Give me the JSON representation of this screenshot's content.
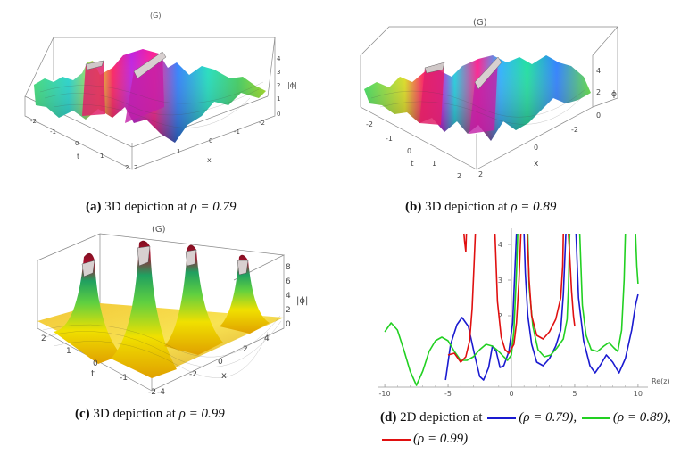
{
  "panel_a": {
    "title": "(G)",
    "zlabel": "|ϕ|",
    "xlabel": "x",
    "tlabel": "t",
    "z_ticks": [
      "4",
      "3",
      "2",
      "1",
      "0"
    ],
    "t_ticks": [
      "-2",
      "-1",
      "0",
      "1",
      "2"
    ],
    "x_ticks": [
      "2",
      "1",
      "0",
      "-1",
      "-2"
    ],
    "caption_label": "(a)",
    "caption_text": " 3D depiction at ",
    "caption_rho": "ρ = 0.79"
  },
  "panel_b": {
    "title": "(G)",
    "zlabel": "|ϕ|",
    "xlabel": "x",
    "tlabel": "t",
    "z_ticks": [
      "4",
      "2",
      "0"
    ],
    "t_ticks": [
      "-2",
      "-1",
      "0",
      "1",
      "2"
    ],
    "x_ticks": [
      "2",
      "0",
      "-2"
    ],
    "caption_label": "(b)",
    "caption_text": " 3D depiction at ",
    "caption_rho": "ρ = 0.89"
  },
  "panel_c": {
    "title": "(G)",
    "zlabel": "|ϕ|",
    "xlabel": "x",
    "tlabel": "t",
    "z_ticks": [
      "8",
      "6",
      "4",
      "2",
      "0"
    ],
    "t_ticks": [
      "2",
      "1",
      "0",
      "-1",
      "-2"
    ],
    "x_ticks": [
      "4",
      "2",
      "0",
      "-2",
      "-4"
    ],
    "caption_label": "(c)",
    "caption_text": " 3D depiction at ",
    "caption_rho": "ρ = 0.99"
  },
  "panel_d": {
    "caption_label": "(d)",
    "caption_text": " 2D depiction at ",
    "legend": [
      {
        "rho": "(ρ = 0.79),",
        "color": "#1a1ad0"
      },
      {
        "rho": "(ρ = 0.89),",
        "color": "#22d022"
      },
      {
        "rho": "(ρ = 0.99)",
        "color": "#e01010"
      }
    ]
  },
  "chart_data": {
    "type": "line",
    "title": "",
    "xlabel": "Re(z)",
    "ylabel": "",
    "xlim": [
      -10.5,
      10.5
    ],
    "ylim": [
      0,
      4.3
    ],
    "x_ticks": [
      -10,
      -5,
      0,
      5,
      10
    ],
    "x_tick_labels": [
      "-10",
      "-5",
      "0",
      "5",
      "10"
    ],
    "y_ticks": [
      2,
      3,
      4
    ],
    "y_tick_labels": [
      "2",
      "3",
      "4"
    ],
    "series": [
      {
        "name": "ρ = 0.79",
        "color": "#1a1ad0",
        "points": [
          [
            -5.2,
            0.2
          ],
          [
            -4.8,
            1.2
          ],
          [
            -4.3,
            1.75
          ],
          [
            -3.9,
            1.95
          ],
          [
            -3.4,
            1.7
          ],
          [
            -2.9,
            0.9
          ],
          [
            -2.5,
            0.3
          ],
          [
            -2.2,
            0.2
          ],
          [
            -1.8,
            0.55
          ],
          [
            -1.5,
            1.15
          ],
          [
            -1.2,
            1.0
          ],
          [
            -0.9,
            0.55
          ],
          [
            -0.6,
            0.6
          ],
          [
            -0.2,
            1.0
          ],
          [
            0.1,
            1.8
          ],
          [
            0.3,
            3.5
          ],
          [
            0.4,
            4.3
          ]
        ]
      },
      {
        "name": "ρ = 0.79",
        "color": "#1a1ad0",
        "points": [
          [
            1.0,
            4.3
          ],
          [
            1.1,
            3.2
          ],
          [
            1.3,
            2.0
          ],
          [
            1.6,
            1.2
          ],
          [
            2.0,
            0.7
          ],
          [
            2.5,
            0.6
          ],
          [
            3.0,
            0.8
          ],
          [
            3.5,
            1.15
          ],
          [
            3.9,
            1.6
          ],
          [
            4.1,
            2.6
          ],
          [
            4.3,
            4.3
          ]
        ]
      },
      {
        "name": "ρ = 0.79",
        "color": "#1a1ad0",
        "points": [
          [
            5.1,
            4.3
          ],
          [
            5.3,
            2.5
          ],
          [
            5.7,
            1.3
          ],
          [
            6.2,
            0.6
          ],
          [
            6.6,
            0.4
          ],
          [
            7.0,
            0.6
          ],
          [
            7.5,
            0.9
          ],
          [
            8.0,
            0.7
          ],
          [
            8.5,
            0.4
          ],
          [
            9.0,
            0.8
          ],
          [
            9.5,
            1.6
          ],
          [
            9.8,
            2.3
          ],
          [
            10.0,
            2.6
          ]
        ]
      },
      {
        "name": "ρ = 0.89",
        "color": "#22d022",
        "points": [
          [
            -10.0,
            1.55
          ],
          [
            -9.5,
            1.8
          ],
          [
            -9.0,
            1.6
          ],
          [
            -8.5,
            1.05
          ],
          [
            -8.0,
            0.45
          ],
          [
            -7.5,
            0.05
          ],
          [
            -7.0,
            0.45
          ],
          [
            -6.5,
            1.0
          ],
          [
            -6.0,
            1.3
          ],
          [
            -5.5,
            1.4
          ],
          [
            -5.0,
            1.3
          ],
          [
            -4.5,
            1.0
          ],
          [
            -4.0,
            0.75
          ],
          [
            -3.5,
            0.75
          ],
          [
            -3.0,
            0.85
          ],
          [
            -2.5,
            1.05
          ],
          [
            -2.0,
            1.2
          ],
          [
            -1.5,
            1.15
          ],
          [
            -1.0,
            1.0
          ],
          [
            -0.6,
            0.85
          ],
          [
            -0.3,
            0.75
          ],
          [
            0.0,
            0.9
          ],
          [
            0.2,
            1.6
          ],
          [
            0.4,
            3.2
          ],
          [
            0.5,
            4.3
          ]
        ]
      },
      {
        "name": "ρ = 0.89",
        "color": "#22d022",
        "points": [
          [
            1.3,
            4.3
          ],
          [
            1.4,
            2.8
          ],
          [
            1.7,
            1.7
          ],
          [
            2.1,
            1.05
          ],
          [
            2.6,
            0.85
          ],
          [
            3.1,
            0.9
          ],
          [
            3.6,
            1.1
          ],
          [
            4.1,
            1.35
          ],
          [
            4.4,
            1.9
          ],
          [
            4.5,
            2.8
          ],
          [
            4.6,
            4.3
          ]
        ]
      },
      {
        "name": "ρ = 0.89",
        "color": "#22d022",
        "points": [
          [
            5.4,
            4.3
          ],
          [
            5.6,
            2.3
          ],
          [
            5.9,
            1.45
          ],
          [
            6.3,
            1.05
          ],
          [
            6.8,
            1.0
          ],
          [
            7.3,
            1.15
          ],
          [
            7.7,
            1.25
          ],
          [
            8.1,
            1.1
          ],
          [
            8.4,
            1.0
          ],
          [
            8.7,
            1.6
          ],
          [
            8.9,
            3.0
          ],
          [
            9.0,
            4.3
          ]
        ]
      },
      {
        "name": "ρ = 0.89",
        "color": "#22d022",
        "points": [
          [
            9.8,
            4.3
          ],
          [
            9.9,
            3.4
          ],
          [
            10.0,
            2.9
          ]
        ]
      },
      {
        "name": "ρ = 0.99",
        "color": "#e01010",
        "points": [
          [
            -5.0,
            0.9
          ],
          [
            -4.5,
            0.95
          ],
          [
            -4.0,
            0.7
          ],
          [
            -3.6,
            0.85
          ],
          [
            -3.3,
            1.3
          ],
          [
            -3.1,
            2.2
          ],
          [
            -2.95,
            3.4
          ],
          [
            -2.85,
            4.3
          ]
        ]
      },
      {
        "name": "ρ = 0.99",
        "color": "#e01010",
        "points": [
          [
            -3.75,
            4.3
          ],
          [
            -3.7,
            4.1
          ],
          [
            -3.6,
            3.8
          ],
          [
            -3.55,
            4.3
          ]
        ]
      },
      {
        "name": "ρ = 0.99",
        "color": "#e01010",
        "points": [
          [
            -1.3,
            4.3
          ],
          [
            -1.1,
            2.4
          ],
          [
            -0.8,
            1.4
          ],
          [
            -0.5,
            1.05
          ],
          [
            -0.2,
            0.95
          ],
          [
            0.2,
            1.2
          ],
          [
            0.4,
            1.8
          ],
          [
            0.6,
            3.0
          ],
          [
            0.75,
            4.3
          ]
        ]
      },
      {
        "name": "ρ = 0.99",
        "color": "#e01010",
        "points": [
          [
            1.25,
            4.3
          ],
          [
            1.4,
            3.0
          ],
          [
            1.6,
            2.0
          ],
          [
            2.0,
            1.45
          ],
          [
            2.5,
            1.35
          ],
          [
            3.0,
            1.55
          ],
          [
            3.5,
            1.9
          ],
          [
            3.9,
            2.5
          ],
          [
            4.05,
            3.4
          ],
          [
            4.1,
            4.3
          ]
        ]
      },
      {
        "name": "ρ = 0.99",
        "color": "#e01010",
        "points": [
          [
            4.5,
            4.3
          ],
          [
            4.6,
            3.7
          ],
          [
            4.75,
            2.7
          ],
          [
            4.9,
            2.0
          ],
          [
            5.0,
            1.7
          ]
        ]
      }
    ]
  }
}
